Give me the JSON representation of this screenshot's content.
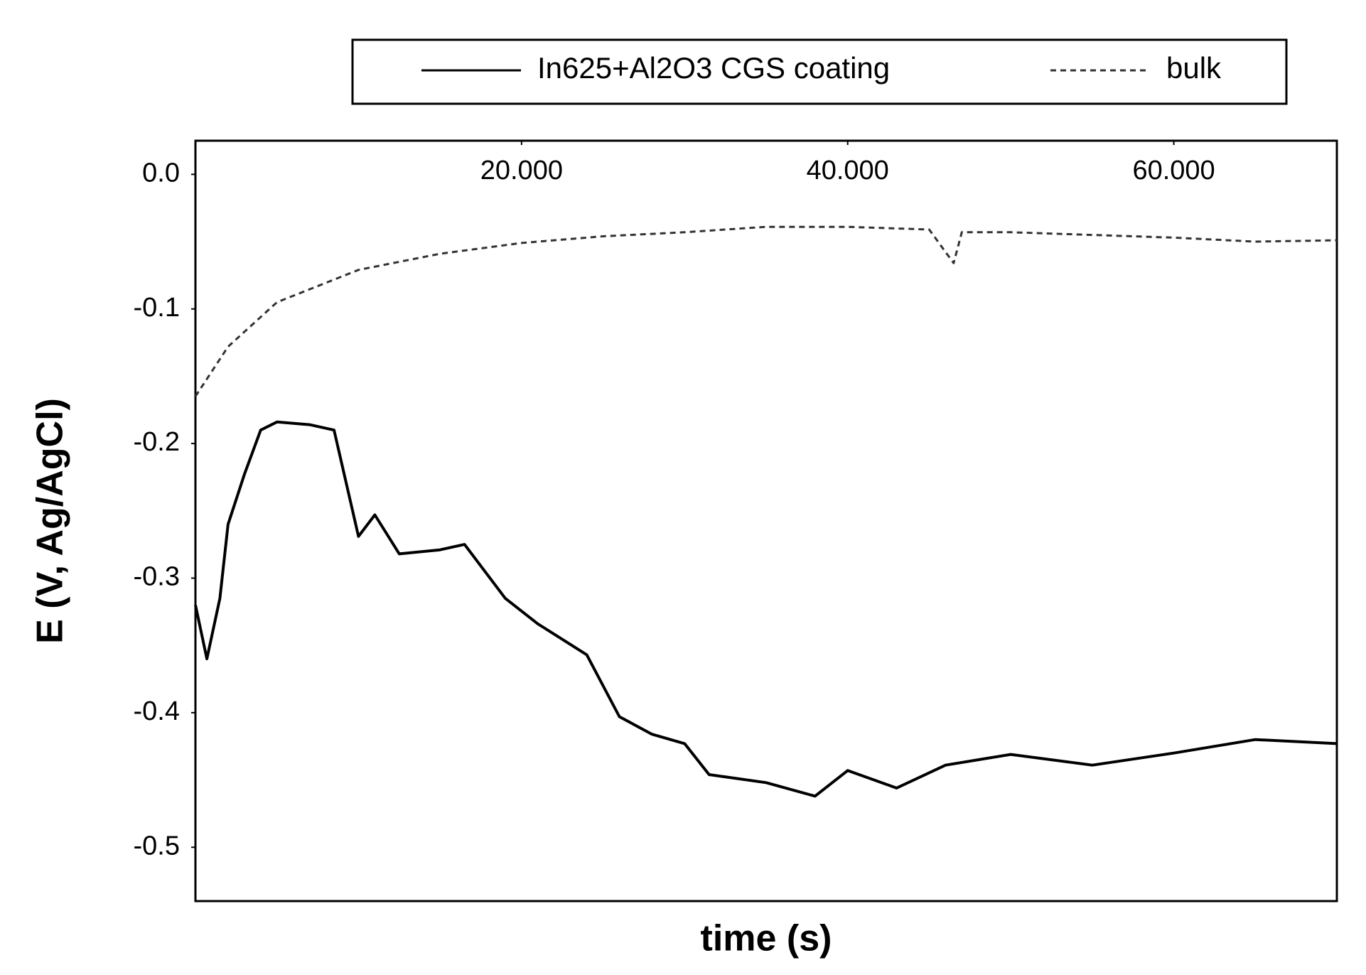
{
  "chart_data": {
    "type": "line",
    "xlabel": "time (s)",
    "ylabel": "E (V, Ag/AgCl)",
    "xlim": [
      0,
      70000
    ],
    "ylim": [
      -0.54,
      0.025
    ],
    "xticks": [
      {
        "value": 20000,
        "label": "20.000"
      },
      {
        "value": 40000,
        "label": "40.000"
      },
      {
        "value": 60000,
        "label": "60.000"
      }
    ],
    "yticks": [
      {
        "value": 0,
        "label": "0.0"
      },
      -0.1,
      -0.2,
      -0.3,
      -0.4,
      -0.5
    ],
    "legend": "top",
    "series": [
      {
        "name": "In625+Al2O3 CGS coating",
        "color": "#000000",
        "dash": "solid",
        "x": [
          0,
          700,
          1500,
          2000,
          3000,
          4000,
          5000,
          7000,
          8500,
          10000,
          11000,
          12500,
          15000,
          16500,
          19000,
          21000,
          24000,
          26000,
          28000,
          30000,
          31500,
          35000,
          38000,
          40000,
          43000,
          46000,
          50000,
          55000,
          60000,
          65000,
          70000
        ],
        "values": [
          -0.32,
          -0.36,
          -0.315,
          -0.26,
          -0.223,
          -0.19,
          -0.184,
          -0.186,
          -0.19,
          -0.269,
          -0.253,
          -0.282,
          -0.279,
          -0.275,
          -0.315,
          -0.334,
          -0.357,
          -0.403,
          -0.416,
          -0.423,
          -0.446,
          -0.452,
          -0.462,
          -0.443,
          -0.456,
          -0.439,
          -0.431,
          -0.439,
          -0.43,
          -0.42,
          -0.423
        ]
      },
      {
        "name": "bulk",
        "color": "#333333",
        "dash": "dashed",
        "x": [
          0,
          2000,
          5000,
          10000,
          15000,
          20000,
          25000,
          30000,
          35000,
          40000,
          45000,
          46500,
          47000,
          50000,
          55000,
          60000,
          65000,
          70000
        ],
        "values": [
          -0.165,
          -0.128,
          -0.095,
          -0.071,
          -0.059,
          -0.051,
          -0.046,
          -0.043,
          -0.039,
          -0.039,
          -0.041,
          -0.066,
          -0.043,
          -0.043,
          -0.045,
          -0.047,
          -0.05,
          -0.049
        ]
      }
    ]
  }
}
